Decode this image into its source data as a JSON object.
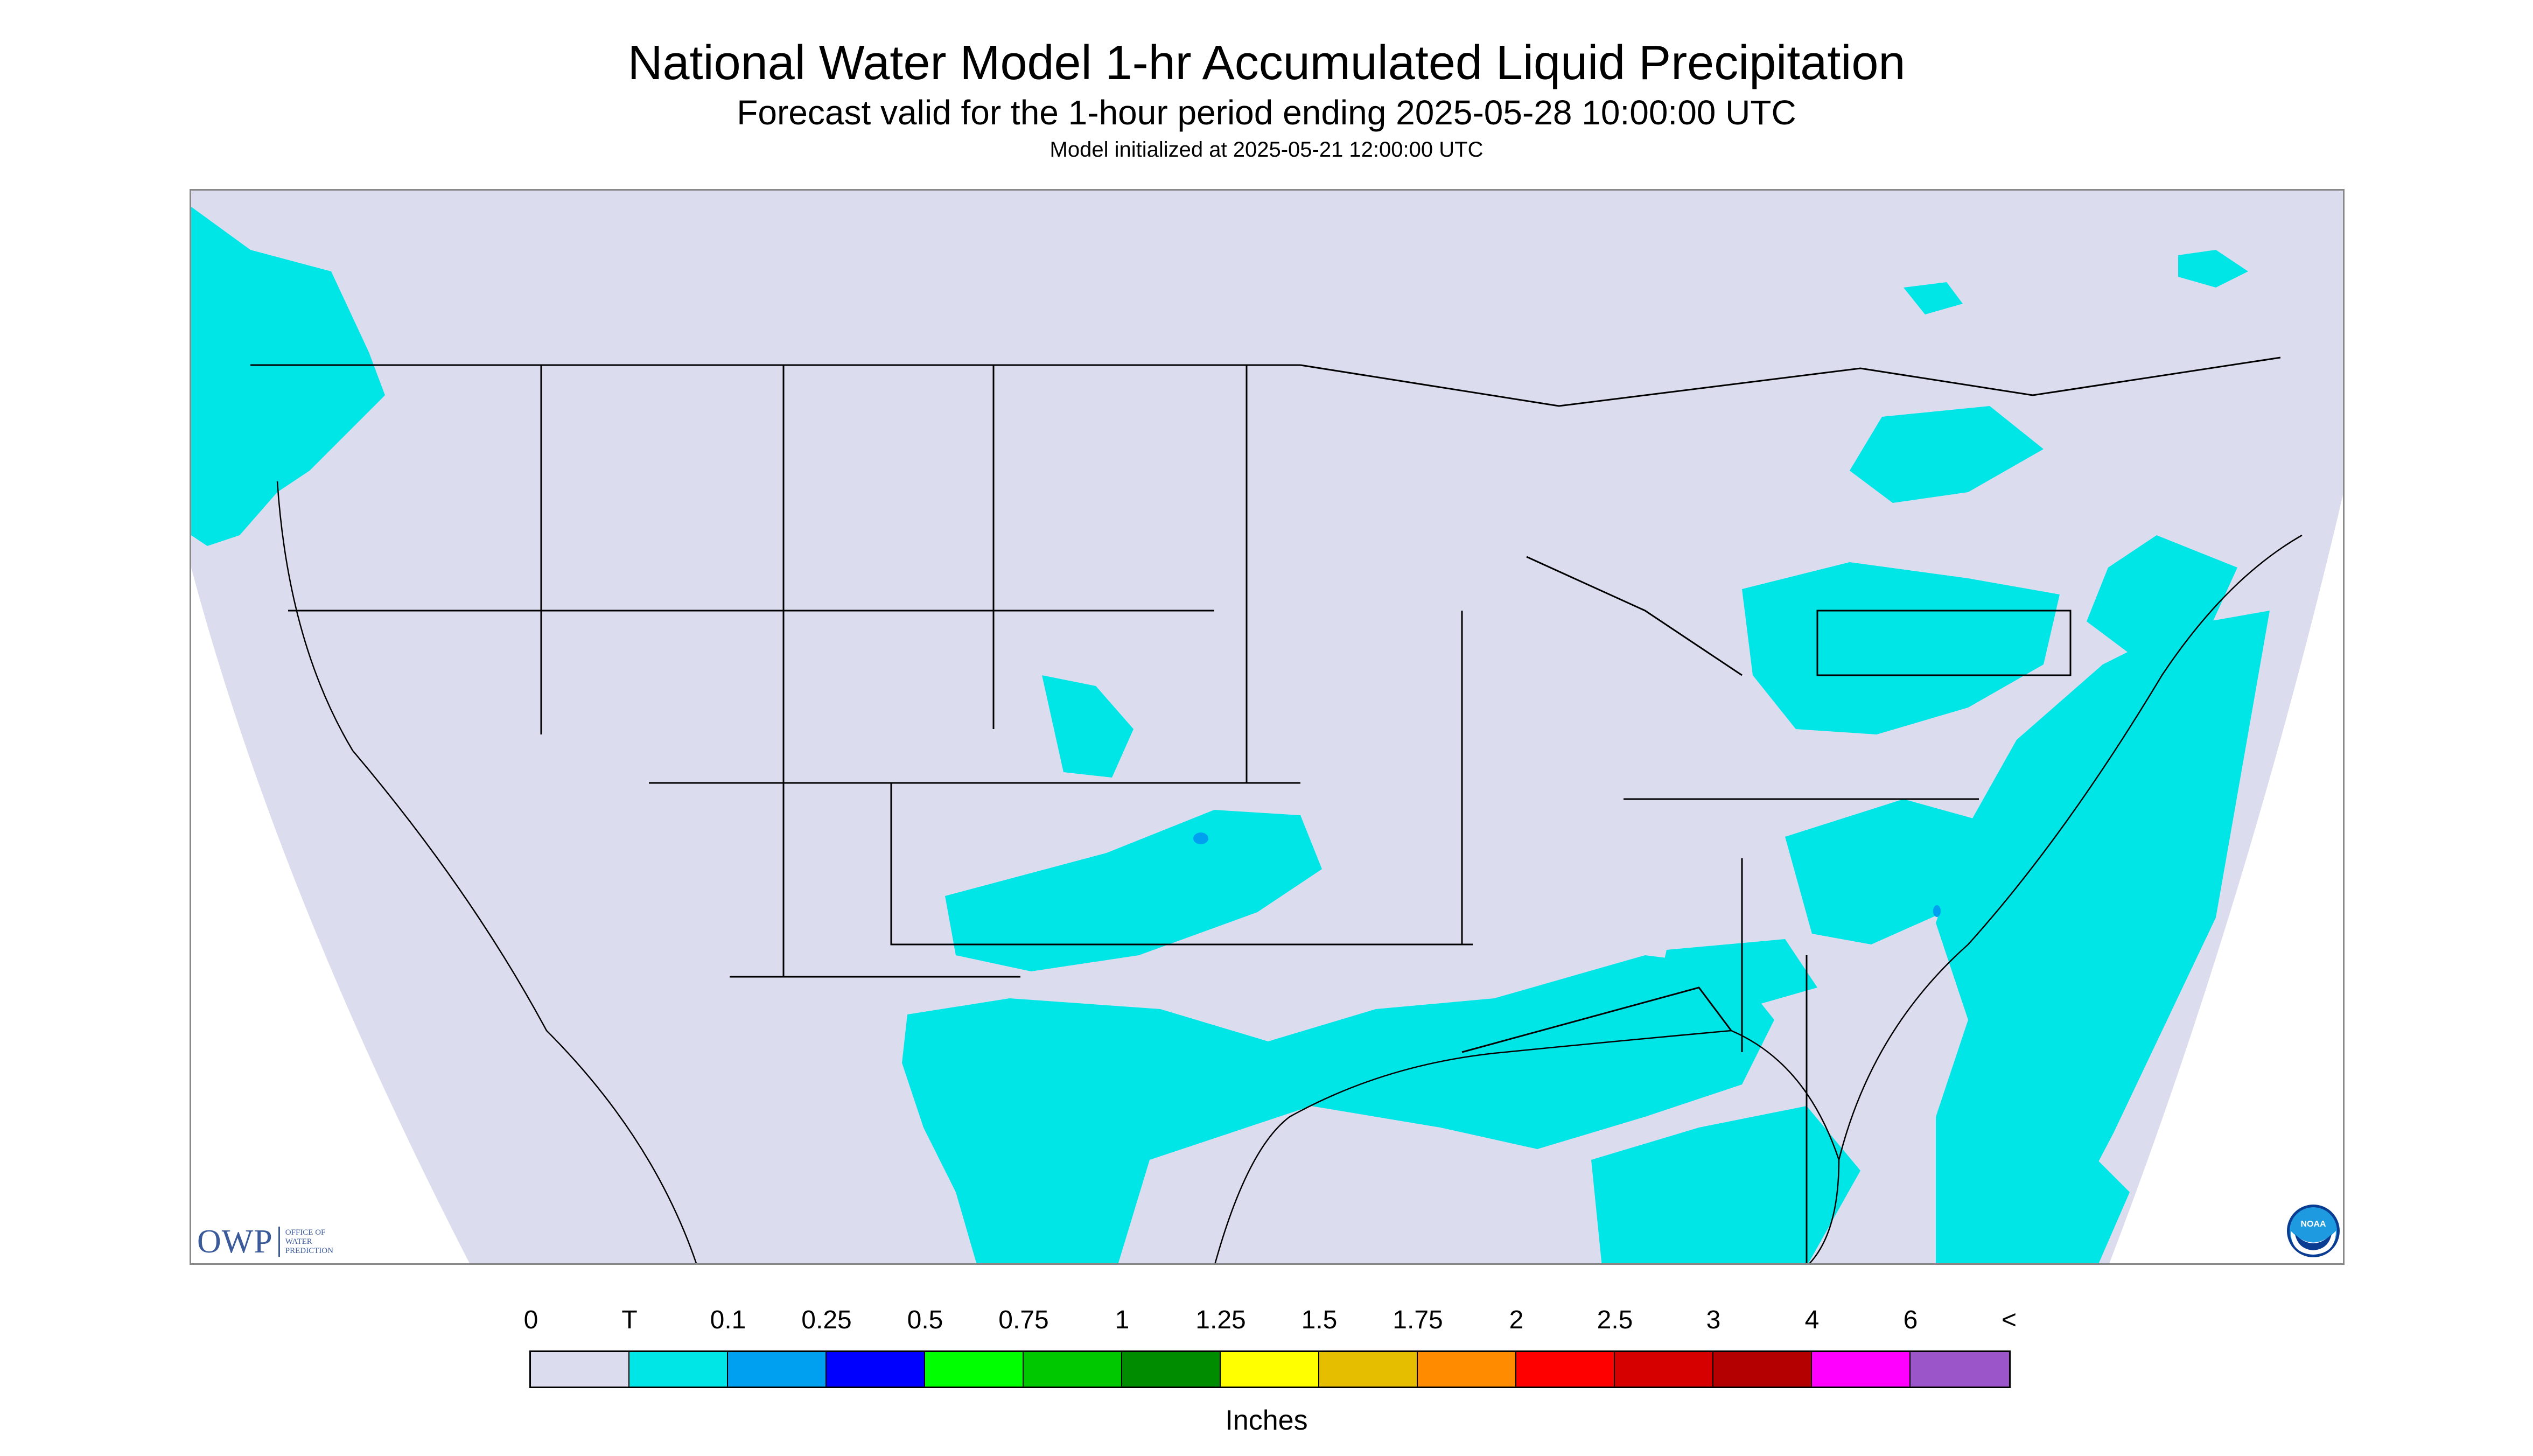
{
  "header": {
    "title": "National Water Model 1-hr Accumulated Liquid Precipitation",
    "subtitle": "Forecast valid for the 1-hour period ending 2025-05-28 10:00:00 UTC",
    "init_line": "Model initialized at 2025-05-21 12:00:00 UTC"
  },
  "logos": {
    "owp_big": "OWP",
    "owp_small": [
      "OFFICE OF",
      "WATER",
      "PREDICTION"
    ],
    "noaa_text": "NOAA"
  },
  "colors": {
    "no_precip": "#dcdcef",
    "trace": "#00e5e5",
    "blue_light": "#00a0f0",
    "boundary": "#000000"
  },
  "legend": {
    "labels": [
      "0",
      "T",
      "0.1",
      "0.25",
      "0.5",
      "0.75",
      "1",
      "1.25",
      "1.5",
      "1.75",
      "2",
      "2.5",
      "3",
      "4",
      "6",
      "<"
    ],
    "swatches": [
      "#dcdcef",
      "#00e5e5",
      "#00a0f0",
      "#0000ff",
      "#00ff00",
      "#00c800",
      "#008c00",
      "#ffff00",
      "#e6be00",
      "#ff8c00",
      "#ff0000",
      "#d70000",
      "#b40000",
      "#ff00ff",
      "#9b55c8"
    ],
    "units": "Inches"
  }
}
